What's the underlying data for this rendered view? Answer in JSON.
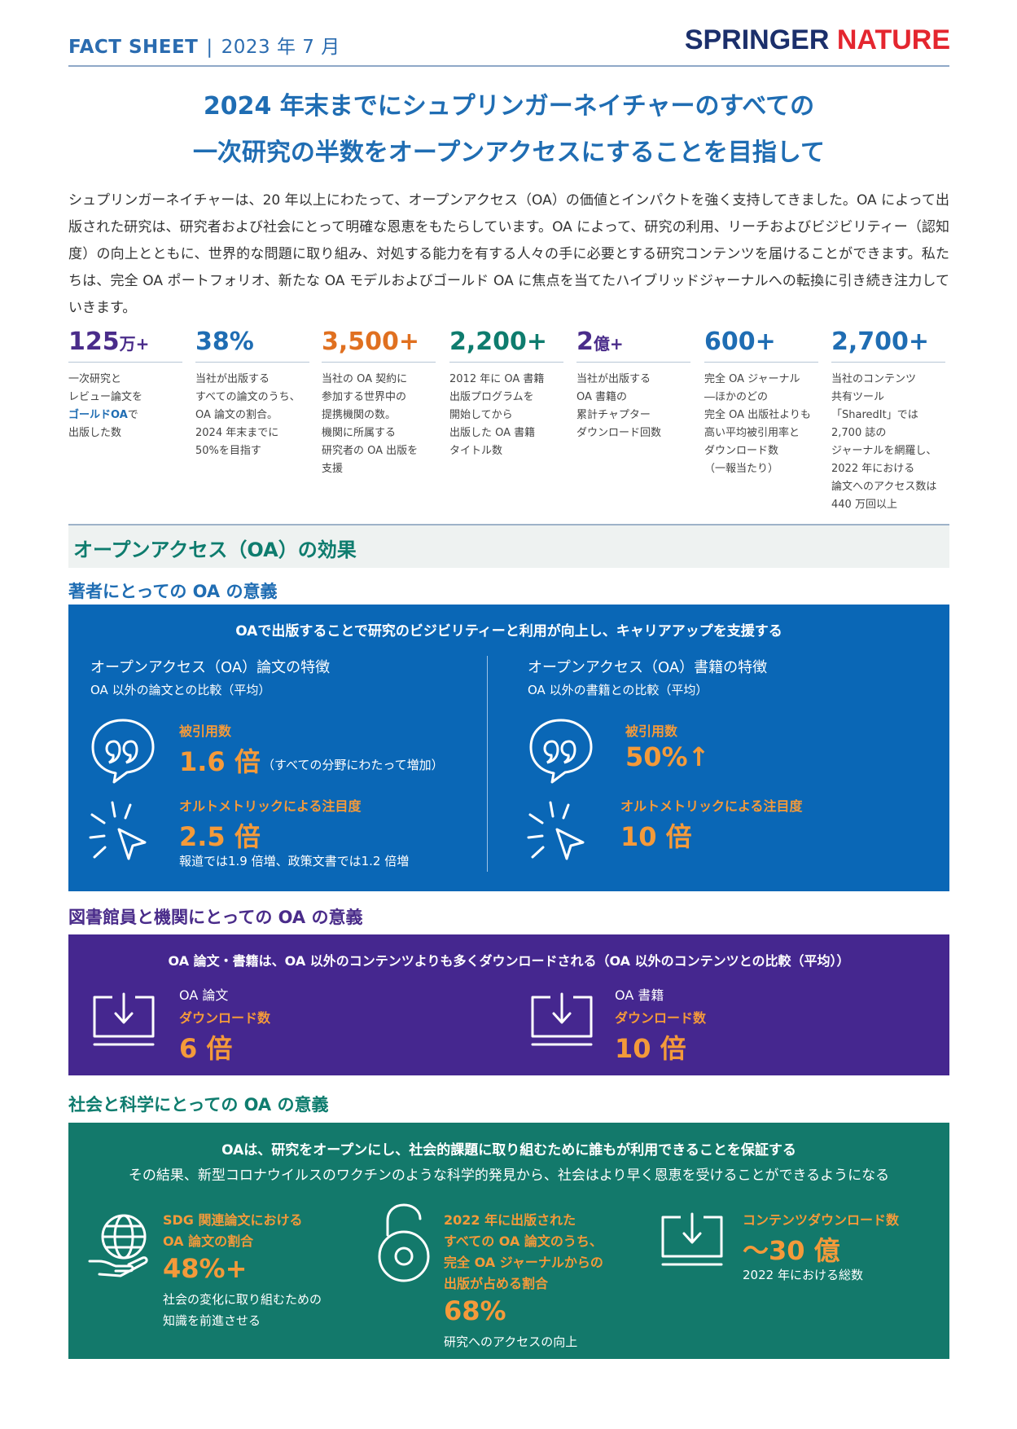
{
  "header": {
    "label": "FACT SHEET",
    "separator": "|",
    "date": "2023 年 7 月",
    "logo_springer": "SPRINGER",
    "logo_nature": "NATURE"
  },
  "title": {
    "line1": "2024 年末までにシュプリンガーネイチャーのすべての",
    "line2": "一次研究の半数をオープンアクセスにすることを目指して"
  },
  "intro": "シュプリンガーネイチャーは、20 年以上にわたって、オープンアクセス（OA）の価値とインパクトを強く支持してきました。OA によって出版された研究は、研究者および社会にとって明確な恩恵をもたらしています。OA によって、研究の利用、リーチおよびビジビリティー（認知度）の向上とともに、世界的な問題に取り組み、対処する能力を有する人々の手に必要とする研究コンテンツを届けることができます。私たちは、完全 OA ポートフォリオ、新たな OA モデルおよびゴールド OA に焦点を当てたハイブリッドジャーナルへの転換に引き続き注力していきます。",
  "stats": [
    {
      "number": "125",
      "unit": "万+",
      "color": "#4A2C8A",
      "desc_before": "一次研究と\nレビュー論文を\n",
      "desc_gold": "ゴールドOA",
      "desc_after": "で\n出版した数"
    },
    {
      "number": "38%",
      "unit": "",
      "color": "#1F6DB3",
      "desc_before": "当社が出版する\nすべての論文のうち、\nOA 論文の割合。\n2024 年末までに\n50%を目指す",
      "desc_gold": "",
      "desc_after": ""
    },
    {
      "number": "3,500+",
      "unit": "",
      "color": "#E07020",
      "desc_before": "当社の OA 契約に\n参加する世界中の\n提携機関の数。\n機関に所属する\n研究者の OA 出版を\n支援",
      "desc_gold": "",
      "desc_after": ""
    },
    {
      "number": "2,200+",
      "unit": "",
      "color": "#0E7C6E",
      "desc_before": "2012 年に OA 書籍\n出版プログラムを\n開始してから\n出版した OA 書籍\nタイトル数",
      "desc_gold": "",
      "desc_after": ""
    },
    {
      "number": "2",
      "unit": "億+",
      "color": "#4A2C8A",
      "desc_before": "当社が出版する\nOA 書籍の\n累計チャプター\nダウンロード回数",
      "desc_gold": "",
      "desc_after": ""
    },
    {
      "number": "600+",
      "unit": "",
      "color": "#1F6DB3",
      "desc_before": "完全 OA ジャーナル\n―ほかのどの\n完全 OA 出版社よりも\n高い平均被引用率と\nダウンロード数\n（一報当たり）",
      "desc_gold": "",
      "desc_after": ""
    },
    {
      "number": "2,700+",
      "unit": "",
      "color": "#1F6DB3",
      "desc_before": "当社のコンテンツ\n共有ツール\n「SharedIt」では\n2,700 誌の\nジャーナルを網羅し、\n2022 年における\n論文へのアクセス数は\n440 万回以上",
      "desc_gold": "",
      "desc_after": ""
    }
  ],
  "effect_title": "オープンアクセス（OA）の効果",
  "authors": {
    "subhead": "著者にとっての OA の意義",
    "headline": "OAで出版することで研究のビジビリティーと利用が向上し、キャリアアップを支援する",
    "left": {
      "title": "オープンアクセス（OA）論文の特徴",
      "subtitle": "OA 以外の論文との比較（平均）",
      "cite_label": "被引用数",
      "cite_value": "1.6 倍",
      "cite_note": "（すべての分野にわたって増加）",
      "alt_label": "オルトメトリックによる注目度",
      "alt_value": "2.5 倍",
      "alt_note": "報道では1.9 倍増、政策文書では1.2 倍増"
    },
    "right": {
      "title": "オープンアクセス（OA）書籍の特徴",
      "subtitle": "OA 以外の書籍との比較（平均）",
      "cite_label": "被引用数",
      "cite_value": "50%↑",
      "alt_label": "オルトメトリックによる注目度",
      "alt_value": "10 倍"
    }
  },
  "library": {
    "subhead": "図書館員と機関にとっての OA の意義",
    "headline": "OA 論文・書籍は、OA 以外のコンテンツよりも多くダウンロードされる（OA 以外のコンテンツとの比較（平均））",
    "left": {
      "title": "OA 論文",
      "label": "ダウンロード数",
      "value": "6 倍"
    },
    "right": {
      "title": "OA 書籍",
      "label": "ダウンロード数",
      "value": "10 倍"
    }
  },
  "society": {
    "subhead": "社会と科学にとっての OA の意義",
    "headline": "OAは、研究をオープンにし、社会的課題に取り組むために誰もが利用できることを保証する",
    "subline": "その結果、新型コロナウイルスのワクチンのような科学的発見から、社会はより早く恩恵を受けることができるようになる",
    "col1": {
      "label1": "SDG 関連論文における",
      "label2": "OA 論文の割合",
      "value": "48%+",
      "note1": "社会の変化に取り組むための",
      "note2": "知識を前進させる"
    },
    "col2": {
      "label1": "2022 年に出版された",
      "label2": "すべての OA 論文のうち、",
      "label3": "完全 OA ジャーナルからの",
      "label4": "出版が占める割合",
      "value": "68%",
      "note1": "研究へのアクセスの向上"
    },
    "col3": {
      "label1": "コンテンツダウンロード数",
      "value": "～30 億",
      "note1": "2022 年における総数"
    }
  }
}
